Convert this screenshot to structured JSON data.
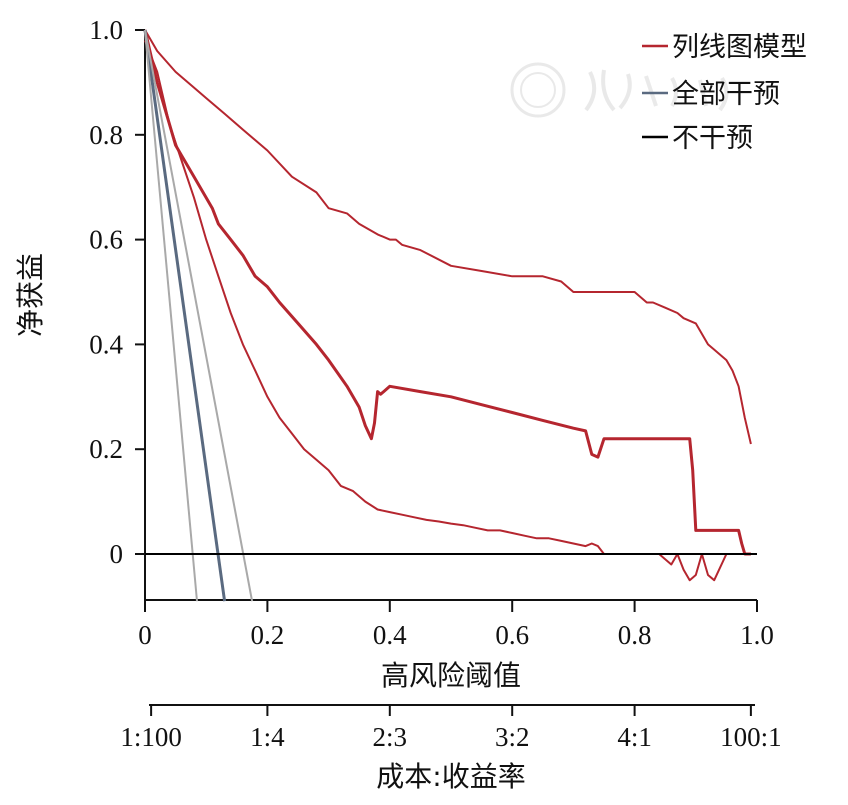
{
  "chart_data": {
    "type": "line",
    "title": "",
    "xlabel": "高风险阈值",
    "ylabel": "净获益",
    "secondary_xlabel": "成本:收益率",
    "xlim": [
      0,
      1.0
    ],
    "ylim": [
      -0.09,
      1.0
    ],
    "x_ticks": [
      0,
      0.2,
      0.4,
      0.6,
      0.8,
      1.0
    ],
    "x_tick_labels": [
      "0",
      "0.2",
      "0.4",
      "0.6",
      "0.8",
      "1.0"
    ],
    "y_ticks": [
      0,
      0.2,
      0.4,
      0.6,
      0.8,
      1.0
    ],
    "y_tick_labels": [
      "0",
      "0.2",
      "0.4",
      "0.6",
      "0.8",
      "1.0"
    ],
    "secondary_x_ticks": [
      0.01,
      0.2,
      0.4,
      0.6,
      0.8,
      0.99
    ],
    "secondary_x_tick_labels": [
      "1:100",
      "1:4",
      "2:3",
      "3:2",
      "4:1",
      "100:1"
    ],
    "legend": {
      "position": "top-right",
      "entries": [
        {
          "label": "列线图模型",
          "color": "#b5262f"
        },
        {
          "label": "全部干预",
          "color": "#5a6a80"
        },
        {
          "label": "不干预",
          "color": "#000000"
        }
      ]
    },
    "series": [
      {
        "name": "列线图模型",
        "role": "main",
        "color": "#b5262f",
        "x": [
          0,
          0.02,
          0.04,
          0.05,
          0.06,
          0.08,
          0.1,
          0.11,
          0.12,
          0.14,
          0.16,
          0.17,
          0.18,
          0.2,
          0.22,
          0.25,
          0.28,
          0.3,
          0.33,
          0.35,
          0.36,
          0.37,
          0.375,
          0.38,
          0.385,
          0.39,
          0.4,
          0.45,
          0.5,
          0.55,
          0.6,
          0.65,
          0.7,
          0.72,
          0.73,
          0.74,
          0.75,
          0.76,
          0.8,
          0.85,
          0.89,
          0.895,
          0.9,
          0.92,
          0.95,
          0.97,
          0.975,
          0.98,
          0.99
        ],
        "y": [
          1.0,
          0.9,
          0.82,
          0.78,
          0.76,
          0.72,
          0.68,
          0.66,
          0.63,
          0.6,
          0.57,
          0.55,
          0.53,
          0.51,
          0.48,
          0.44,
          0.4,
          0.37,
          0.32,
          0.28,
          0.245,
          0.22,
          0.25,
          0.31,
          0.305,
          0.31,
          0.32,
          0.31,
          0.3,
          0.285,
          0.27,
          0.255,
          0.24,
          0.235,
          0.19,
          0.185,
          0.22,
          0.22,
          0.22,
          0.22,
          0.22,
          0.16,
          0.045,
          0.045,
          0.045,
          0.045,
          0.02,
          0.0,
          0.0
        ]
      },
      {
        "name": "列线图模型",
        "role": "ci-upper",
        "color": "#b5262f",
        "x": [
          0,
          0.02,
          0.05,
          0.08,
          0.1,
          0.13,
          0.16,
          0.2,
          0.24,
          0.28,
          0.3,
          0.33,
          0.35,
          0.38,
          0.4,
          0.41,
          0.42,
          0.45,
          0.5,
          0.55,
          0.6,
          0.65,
          0.68,
          0.7,
          0.75,
          0.8,
          0.82,
          0.83,
          0.85,
          0.87,
          0.88,
          0.9,
          0.92,
          0.93,
          0.95,
          0.96,
          0.97,
          0.98,
          0.99
        ],
        "y": [
          1.0,
          0.96,
          0.92,
          0.89,
          0.87,
          0.84,
          0.81,
          0.77,
          0.72,
          0.69,
          0.66,
          0.65,
          0.63,
          0.61,
          0.6,
          0.6,
          0.59,
          0.58,
          0.55,
          0.54,
          0.53,
          0.53,
          0.52,
          0.5,
          0.5,
          0.5,
          0.48,
          0.48,
          0.47,
          0.46,
          0.45,
          0.44,
          0.4,
          0.39,
          0.37,
          0.35,
          0.32,
          0.26,
          0.21
        ]
      },
      {
        "name": "列线图模型",
        "role": "ci-lower",
        "color": "#b5262f",
        "x": [
          0,
          0.02,
          0.04,
          0.06,
          0.08,
          0.1,
          0.12,
          0.14,
          0.16,
          0.18,
          0.2,
          0.22,
          0.24,
          0.26,
          0.28,
          0.3,
          0.32,
          0.34,
          0.36,
          0.38,
          0.4,
          0.42,
          0.44,
          0.46,
          0.48,
          0.5,
          0.52,
          0.54,
          0.56,
          0.58,
          0.6,
          0.62,
          0.64,
          0.66,
          0.68,
          0.7,
          0.72,
          0.73,
          0.74,
          0.75,
          0.76,
          0.78,
          0.8,
          0.82,
          0.84,
          0.85,
          0.86,
          0.87,
          0.88,
          0.89,
          0.9,
          0.91,
          0.92,
          0.93,
          0.95,
          0.97,
          0.99
        ],
        "y": [
          0.98,
          0.92,
          0.82,
          0.75,
          0.68,
          0.6,
          0.53,
          0.46,
          0.4,
          0.35,
          0.3,
          0.26,
          0.23,
          0.2,
          0.18,
          0.16,
          0.13,
          0.12,
          0.1,
          0.085,
          0.08,
          0.075,
          0.07,
          0.065,
          0.062,
          0.058,
          0.055,
          0.05,
          0.045,
          0.045,
          0.04,
          0.035,
          0.03,
          0.03,
          0.025,
          0.02,
          0.015,
          0.02,
          0.015,
          0.0,
          0.0,
          0.0,
          0.0,
          0.0,
          0.0,
          -0.01,
          -0.02,
          0.0,
          -0.03,
          -0.05,
          -0.04,
          0.0,
          -0.04,
          -0.05,
          0.0,
          0.0,
          0.0
        ]
      },
      {
        "name": "全部干预",
        "role": "main",
        "color": "#5a6a80",
        "x": [
          0,
          0.13
        ],
        "y": [
          1.0,
          -0.09
        ]
      },
      {
        "name": "全部干预",
        "role": "ci-upper",
        "color": "#a9a9a9",
        "x": [
          0,
          0.175
        ],
        "y": [
          1.0,
          -0.09
        ]
      },
      {
        "name": "全部干预",
        "role": "ci-lower",
        "color": "#a9a9a9",
        "x": [
          0,
          0.085
        ],
        "y": [
          1.0,
          -0.09
        ]
      },
      {
        "name": "不干预",
        "role": "main",
        "color": "#000000",
        "x": [
          0,
          1.0
        ],
        "y": [
          0,
          0
        ]
      }
    ]
  }
}
